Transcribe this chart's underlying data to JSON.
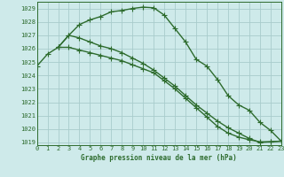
{
  "title": "Graphe pression niveau de la mer (hPa)",
  "bg_color": "#ceeaea",
  "grid_color": "#a8cccc",
  "line_color": "#2d6b2d",
  "xlim": [
    0,
    23
  ],
  "ylim": [
    1018.8,
    1029.5
  ],
  "yticks": [
    1019,
    1020,
    1021,
    1022,
    1023,
    1024,
    1025,
    1026,
    1027,
    1028,
    1029
  ],
  "xticks": [
    0,
    1,
    2,
    3,
    4,
    5,
    6,
    7,
    8,
    9,
    10,
    11,
    12,
    13,
    14,
    15,
    16,
    17,
    18,
    19,
    20,
    21,
    22,
    23
  ],
  "series": [
    {
      "x": [
        0,
        1,
        2,
        3,
        4,
        5,
        6,
        7,
        8,
        9,
        10,
        11,
        12,
        13,
        14,
        15,
        16,
        17,
        18,
        19,
        20,
        21,
        22,
        23
      ],
      "y": [
        1024.7,
        1025.6,
        1026.1,
        1027.0,
        1027.8,
        1028.15,
        1028.4,
        1028.75,
        1028.85,
        1029.0,
        1029.1,
        1029.05,
        1028.5,
        1027.5,
        1026.5,
        1025.2,
        1024.7,
        1023.7,
        1022.5,
        1021.8,
        1021.4,
        1020.5,
        1019.9,
        1019.1
      ],
      "marker": "+",
      "markersize": 4,
      "linewidth": 1.0
    },
    {
      "x": [
        2,
        3,
        4,
        5,
        6,
        7,
        8,
        9,
        10,
        11,
        12,
        13,
        14,
        15,
        16,
        17,
        18,
        19,
        20,
        21,
        22,
        23
      ],
      "y": [
        1026.1,
        1027.0,
        1026.8,
        1026.5,
        1026.2,
        1026.0,
        1025.7,
        1025.3,
        1024.9,
        1024.4,
        1023.8,
        1023.2,
        1022.5,
        1021.8,
        1021.2,
        1020.6,
        1020.1,
        1019.7,
        1019.3,
        1019.0,
        1019.05,
        1019.1
      ],
      "marker": "+",
      "markersize": 4,
      "linewidth": 1.0
    },
    {
      "x": [
        2,
        3,
        4,
        5,
        6,
        7,
        8,
        9,
        10,
        11,
        12,
        13,
        14,
        15,
        16,
        17,
        18,
        19,
        20,
        21,
        22,
        23
      ],
      "y": [
        1026.1,
        1026.1,
        1025.9,
        1025.7,
        1025.5,
        1025.3,
        1025.1,
        1024.8,
        1024.5,
        1024.2,
        1023.6,
        1023.0,
        1022.3,
        1021.6,
        1020.9,
        1020.2,
        1019.7,
        1019.4,
        1019.2,
        1019.05,
        1019.05,
        1019.1
      ],
      "marker": "+",
      "markersize": 4,
      "linewidth": 1.0
    }
  ]
}
